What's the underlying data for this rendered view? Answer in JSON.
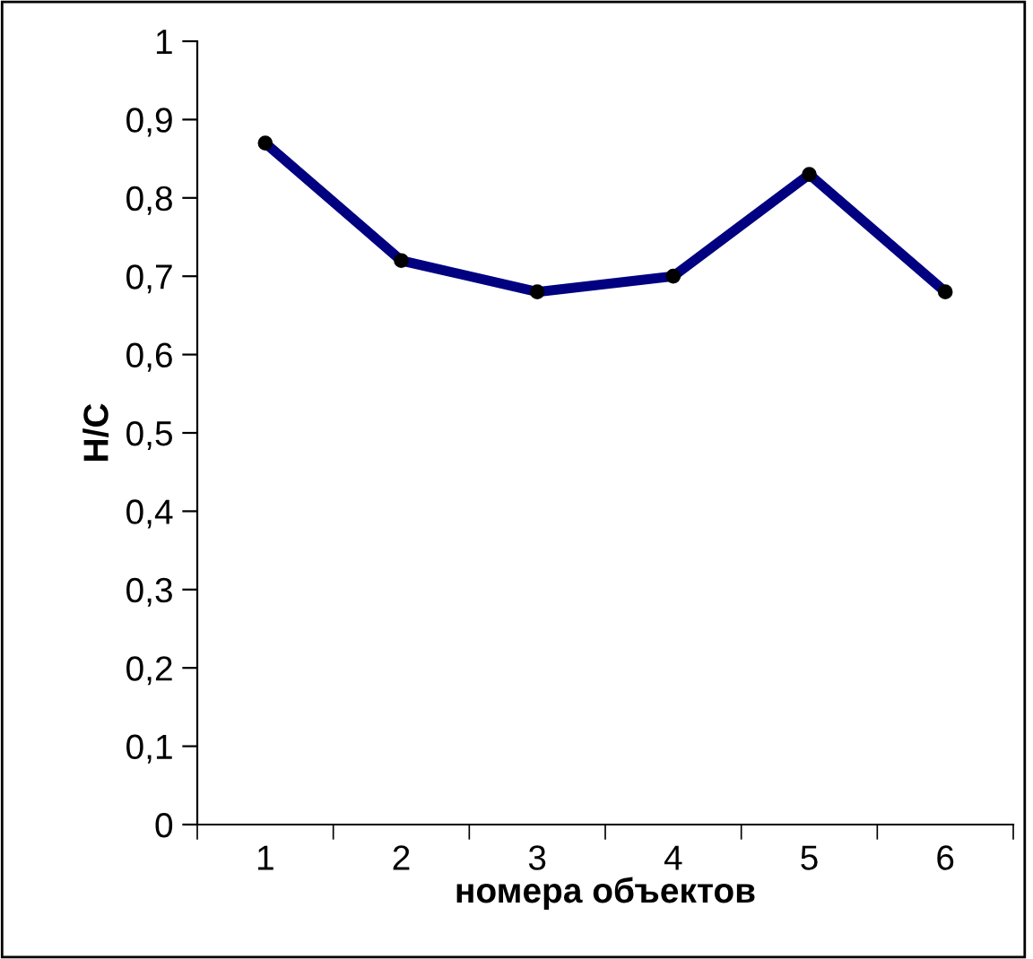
{
  "chart_data": {
    "type": "line",
    "xlabel": "номера объектов",
    "ylabel": "H/C",
    "categories": [
      "1",
      "2",
      "3",
      "4",
      "5",
      "6"
    ],
    "series": [
      {
        "color": "#000080",
        "values": [
          0.87,
          0.72,
          0.68,
          0.7,
          0.83,
          0.68
        ]
      }
    ],
    "ylim": [
      0,
      1
    ],
    "yticks": [
      0,
      {
        "value": 0.1,
        "label": "0,1"
      },
      {
        "value": 0.2,
        "label": "0,2"
      },
      {
        "value": 0.3,
        "label": "0,3"
      },
      {
        "value": 0.4,
        "label": "0,4"
      },
      {
        "value": 0.5,
        "label": "0,5"
      },
      {
        "value": 0.6,
        "label": "0,6"
      },
      {
        "value": 0.7,
        "label": "0,7"
      },
      {
        "value": 0.8,
        "label": "0,8"
      },
      {
        "value": 0.9,
        "label": "0,9"
      },
      1
    ],
    "marker": "circle",
    "line_style": "solid"
  }
}
